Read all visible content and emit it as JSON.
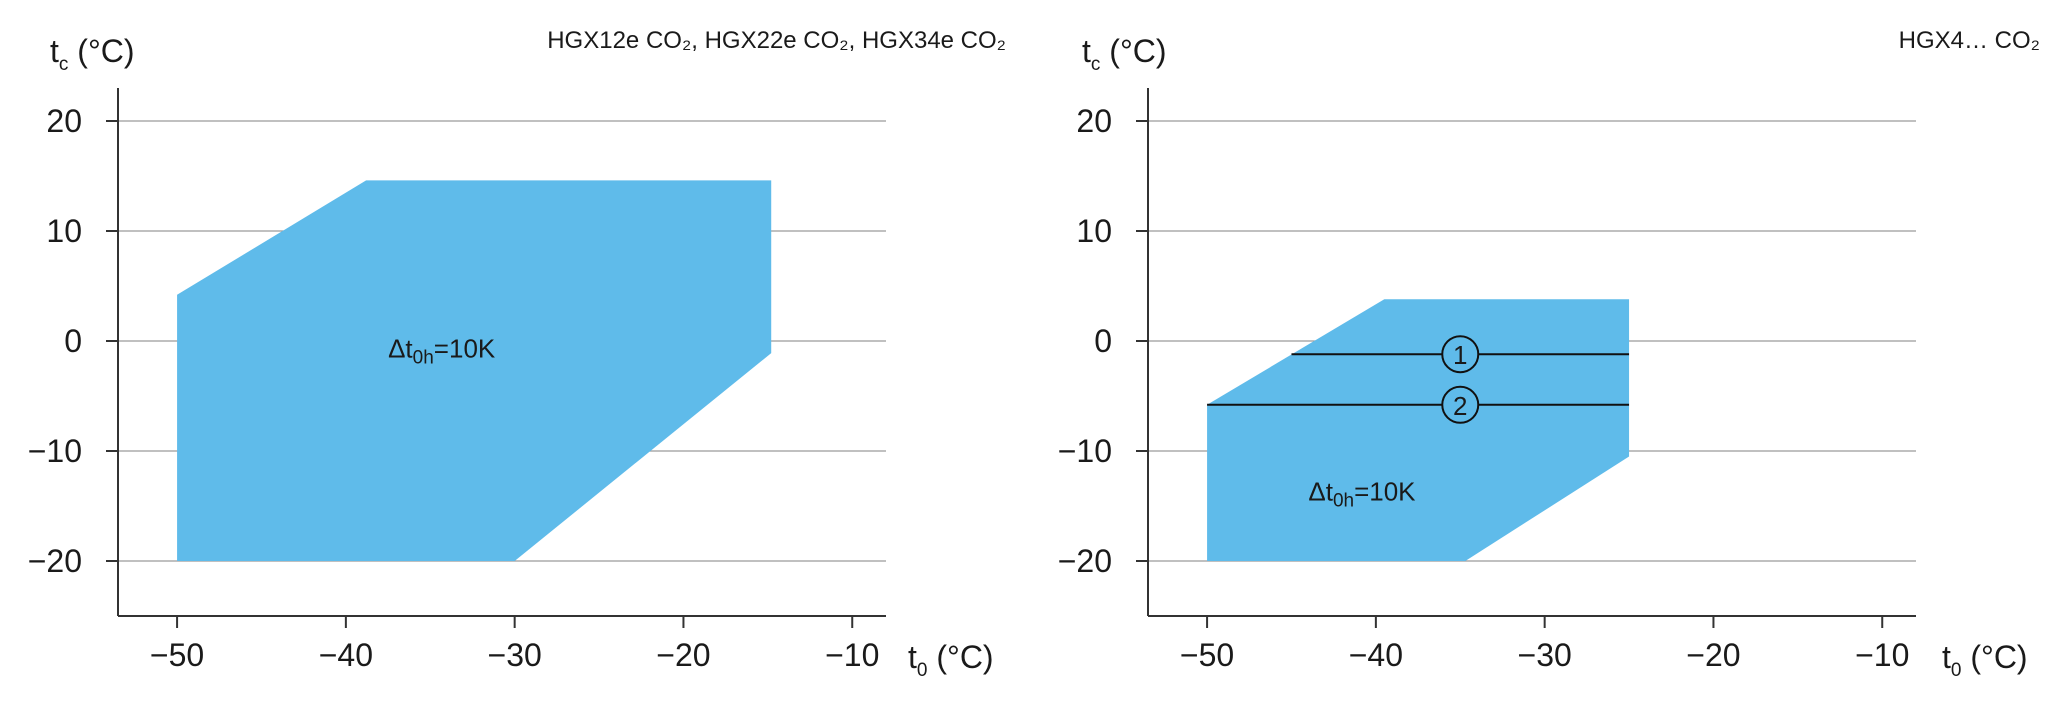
{
  "chart_data": [
    {
      "type": "area",
      "title": "HGX12e CO₂, HGX22e CO₂, HGX34e CO₂",
      "xlabel": "t0 (°C)",
      "ylabel": "tc (°C)",
      "xlim": [
        -53.5,
        -8
      ],
      "ylim": [
        -25,
        23
      ],
      "xticks": [
        -50,
        -40,
        -30,
        -20,
        -10
      ],
      "yticks": [
        20,
        10,
        0,
        -10,
        -20
      ],
      "xtick_labels": [
        "−50",
        "−40",
        "−30",
        "−20",
        "−10"
      ],
      "ytick_labels": [
        "20",
        "10",
        "0",
        "−10",
        "−20"
      ],
      "grid": "horizontal",
      "fill_color": "#5fbbea",
      "region": [
        [
          -50,
          4.2
        ],
        [
          -38.8,
          14.6
        ],
        [
          -14.8,
          14.6
        ],
        [
          -14.8,
          -1.1
        ],
        [
          -30,
          -20
        ],
        [
          -50,
          -20
        ]
      ],
      "annotation": {
        "text": "Δt0h=10K",
        "x": -37.5,
        "y": -1.5
      },
      "lines": []
    },
    {
      "type": "area",
      "title": "HGX4… CO₂",
      "xlabel": "t0 (°C)",
      "ylabel": "tc (°C)",
      "xlim": [
        -53.5,
        -8
      ],
      "ylim": [
        -25,
        23
      ],
      "xticks": [
        -50,
        -40,
        -30,
        -20,
        -10
      ],
      "yticks": [
        20,
        10,
        0,
        -10,
        -20
      ],
      "xtick_labels": [
        "−50",
        "−40",
        "−30",
        "−20",
        "−10"
      ],
      "ytick_labels": [
        "20",
        "10",
        "0",
        "−10",
        "−20"
      ],
      "grid": "horizontal",
      "fill_color": "#5fbbea",
      "region": [
        [
          -50,
          -5.8
        ],
        [
          -39.5,
          3.8
        ],
        [
          -25,
          3.8
        ],
        [
          -25,
          -10.5
        ],
        [
          -34.7,
          -20
        ],
        [
          -50,
          -20
        ]
      ],
      "annotation": {
        "text": "Δt0h=10K",
        "x": -44,
        "y": -14.5
      },
      "lines": [
        {
          "label": "1",
          "x": [
            -45,
            -25
          ],
          "y": -1.2,
          "marker_x": -35
        },
        {
          "label": "2",
          "x": [
            -50,
            -25
          ],
          "y": -5.8,
          "marker_x": -35
        }
      ]
    }
  ]
}
